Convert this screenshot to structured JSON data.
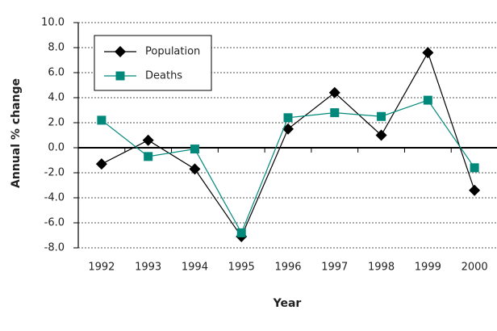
{
  "chart_data": {
    "type": "line",
    "x_label": "Year",
    "y_label": "Annual % change",
    "categories": [
      "1992",
      "1993",
      "1994",
      "1995",
      "1996",
      "1997",
      "1998",
      "1999",
      "2000"
    ],
    "series": [
      {
        "name": "Population",
        "color": "#000000",
        "marker": "diamond",
        "values": [
          -1.3,
          0.6,
          -1.7,
          -7.1,
          1.5,
          4.4,
          1.0,
          7.6,
          -3.4
        ]
      },
      {
        "name": "Deaths",
        "color": "#00897b",
        "marker": "square",
        "values": [
          2.2,
          -0.7,
          -0.1,
          -6.8,
          2.4,
          2.8,
          2.5,
          3.8,
          -1.6
        ]
      }
    ],
    "ylim": [
      -8,
      10
    ],
    "yticks": [
      {
        "value": -8,
        "label": "-8.0"
      },
      {
        "value": -6,
        "label": "-6.0"
      },
      {
        "value": -4,
        "label": "-4.0"
      },
      {
        "value": -2,
        "label": "-2.0"
      },
      {
        "value": 0,
        "label": "0.0"
      },
      {
        "value": 2,
        "label": "2.0"
      },
      {
        "value": 4,
        "label": "4.0"
      },
      {
        "value": 6,
        "label": "6.0"
      },
      {
        "value": 8,
        "label": "8.0"
      },
      {
        "value": 10,
        "label": "10.0"
      }
    ],
    "grid": true,
    "legend": "top-left"
  }
}
